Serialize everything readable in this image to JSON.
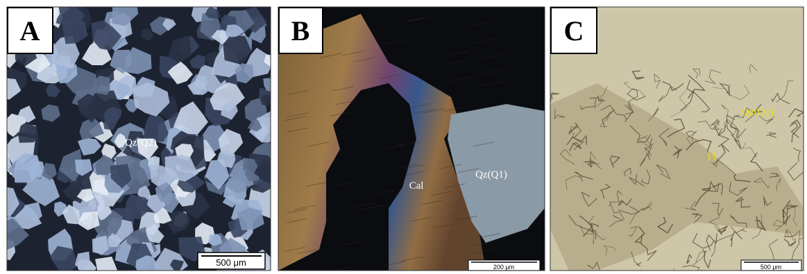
{
  "panels": [
    {
      "label": "A",
      "annotations": [
        "Qz(Q2)"
      ],
      "scale_bar": "500 μm"
    },
    {
      "label": "B",
      "annotations": [
        "Cal",
        "Qz(Q1)"
      ],
      "scale_bar": "200 μm"
    },
    {
      "label": "C",
      "annotations": [
        "Qz(Q1)",
        "Fl"
      ],
      "scale_bar": "500 μm"
    }
  ]
}
